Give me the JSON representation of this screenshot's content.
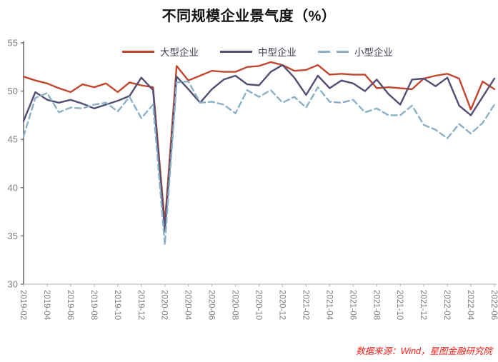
{
  "title": "不同规模企业景气度（%）",
  "footer": {
    "source_text": "数据来源：Wind，星图金融研究院"
  },
  "colors": {
    "large_series": "#C2452D",
    "medium_series": "#524E74",
    "small_series": "#8AB0C8",
    "title_text": "#111111",
    "legend_text": "#3E4254",
    "axis_label": "#7F7F7F",
    "y_axis_line": "#595959",
    "x_axis_line": "#BFBFBF",
    "footer_text": "#FB1B14"
  },
  "chart_data": {
    "type": "line",
    "title": "不同规模企业景气度（%）",
    "xlabel": "",
    "ylabel": "",
    "ylim": [
      30,
      55
    ],
    "yticks": [
      30,
      35,
      40,
      45,
      50,
      55
    ],
    "grid": false,
    "legend_position": "top",
    "x_tick_every": 2,
    "x": [
      "2019-02",
      "2019-03",
      "2019-04",
      "2019-05",
      "2019-06",
      "2019-07",
      "2019-08",
      "2019-09",
      "2019-10",
      "2019-11",
      "2019-12",
      "2020-01",
      "2020-02",
      "2020-03",
      "2020-04",
      "2020-05",
      "2020-06",
      "2020-07",
      "2020-08",
      "2020-09",
      "2020-10",
      "2020-11",
      "2020-12",
      "2021-01",
      "2021-02",
      "2021-03",
      "2021-04",
      "2021-05",
      "2021-06",
      "2021-07",
      "2021-08",
      "2021-09",
      "2021-10",
      "2021-11",
      "2021-12",
      "2022-01",
      "2022-02",
      "2022-03",
      "2022-04",
      "2022-05",
      "2022-06"
    ],
    "series": [
      {
        "name": "大型企业",
        "style": "solid",
        "color": "#C2452D",
        "values": [
          51.5,
          51.1,
          50.8,
          50.3,
          49.9,
          50.7,
          50.4,
          50.8,
          49.9,
          50.9,
          50.6,
          50.4,
          36.3,
          52.6,
          51.1,
          51.6,
          52.1,
          52.0,
          52.0,
          52.5,
          52.6,
          53.0,
          52.7,
          52.1,
          52.2,
          52.7,
          51.7,
          51.8,
          51.7,
          51.7,
          50.3,
          50.4,
          50.3,
          50.2,
          51.3,
          51.6,
          51.8,
          51.3,
          48.1,
          51.0,
          50.2
        ]
      },
      {
        "name": "中型企业",
        "style": "solid",
        "color": "#524E74",
        "values": [
          46.9,
          49.9,
          49.1,
          48.8,
          49.1,
          48.7,
          48.2,
          48.6,
          49.0,
          49.5,
          51.4,
          50.1,
          35.5,
          51.5,
          50.2,
          48.8,
          50.2,
          51.2,
          51.6,
          50.7,
          50.6,
          52.0,
          52.7,
          51.4,
          49.6,
          51.6,
          50.3,
          51.1,
          50.8,
          50.0,
          51.2,
          49.7,
          48.6,
          51.2,
          51.3,
          50.5,
          51.4,
          48.5,
          47.5,
          49.4,
          51.3
        ]
      },
      {
        "name": "小型企业",
        "style": "dashed",
        "color": "#8AB0C8",
        "values": [
          45.3,
          49.3,
          49.8,
          47.8,
          48.3,
          48.2,
          48.6,
          48.8,
          47.9,
          49.4,
          47.2,
          48.6,
          34.1,
          50.9,
          51.0,
          48.8,
          48.9,
          48.6,
          47.7,
          50.1,
          49.4,
          50.1,
          48.8,
          49.4,
          48.3,
          50.4,
          48.9,
          48.8,
          49.1,
          47.8,
          48.2,
          47.5,
          47.5,
          48.5,
          46.5,
          46.0,
          45.1,
          46.6,
          45.6,
          46.7,
          48.6
        ]
      }
    ]
  }
}
